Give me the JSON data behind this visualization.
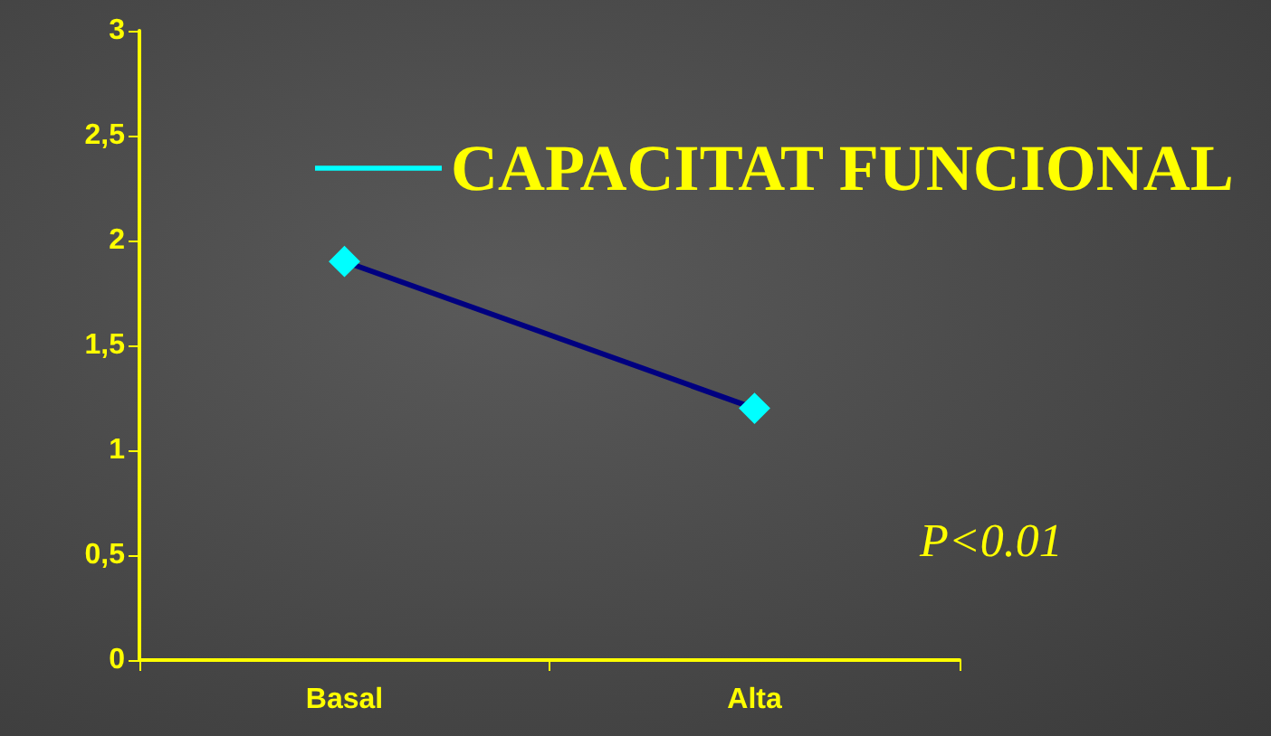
{
  "chart_data": {
    "type": "line",
    "categories": [
      "Basal",
      "Alta"
    ],
    "series": [
      {
        "name": "CAPACITAT FUNCIONAL",
        "color": "#000080",
        "values": [
          1.9,
          1.2
        ]
      }
    ],
    "ylim": [
      0,
      3
    ],
    "yticks": [
      0,
      {
        "value": 0.5,
        "label": "0,5"
      },
      1,
      {
        "value": 1.5,
        "label": "1,5"
      },
      2,
      {
        "value": 2.5,
        "label": "2,5"
      },
      3
    ],
    "marker": "diamond",
    "line_style": "solid",
    "grid": false,
    "legend": "top right",
    "annotations": [
      "P<0.01"
    ]
  }
}
